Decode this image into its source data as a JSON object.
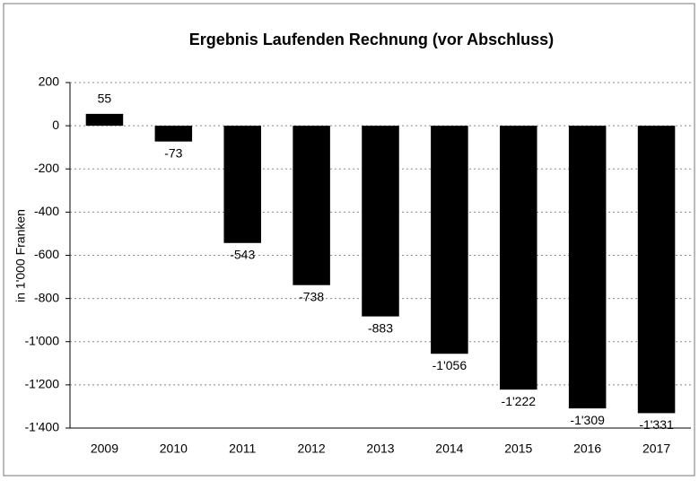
{
  "chart_data": {
    "type": "bar",
    "title": "Ergebnis Laufenden Rechnung (vor Abschluss)",
    "y_label": "in 1'000 Franken",
    "categories": [
      "2009",
      "2010",
      "2011",
      "2012",
      "2013",
      "2014",
      "2015",
      "2016",
      "2017"
    ],
    "values": [
      55,
      -73,
      -543,
      -738,
      -883,
      -1056,
      -1222,
      -1309,
      -1331
    ],
    "value_labels": [
      "55",
      "-73",
      "-543",
      "-738",
      "-883",
      "-1'056",
      "-1'222",
      "-1'309",
      "-1'331"
    ],
    "color": "#000000",
    "ylim": [
      -1400,
      200
    ],
    "yticks": [
      200,
      0,
      -200,
      -400,
      -600,
      -800,
      {
        "value": -1000,
        "label": "-1'000"
      },
      {
        "value": -1200,
        "label": "-1'200"
      },
      {
        "value": -1400,
        "label": "-1'400"
      }
    ],
    "grid": true
  }
}
